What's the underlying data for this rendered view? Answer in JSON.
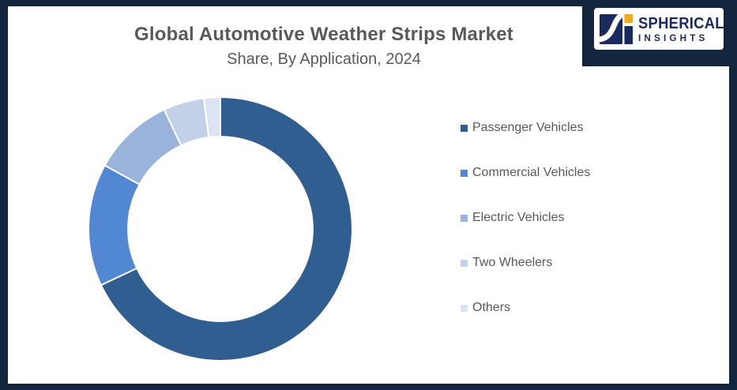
{
  "frame": {
    "border_color": "#14263E",
    "background_color": "#FFFFFF"
  },
  "brand": {
    "name_line1": "SPHERICAL",
    "name_line2": "INSIGHTS",
    "navy_color": "#1B2A5E",
    "orange_color": "#F4A81D"
  },
  "chart_data": {
    "type": "pie",
    "subtype": "donut",
    "title": "Global Automotive Weather Strips Market",
    "subtitle": "Share, By Application, 2024",
    "categories": [
      "Passenger Vehicles",
      "Commercial Vehicles",
      "Electric Vehicles",
      "Two Wheelers",
      "Others"
    ],
    "values": [
      68,
      15,
      10,
      5,
      2
    ],
    "values_are_estimated_percent": true,
    "colors": [
      "#305E90",
      "#5187D3",
      "#99B3DA",
      "#C2D1E8",
      "#DCE4F2"
    ],
    "start_angle_deg": 0,
    "direction": "clockwise",
    "inner_radius_ratio": 0.7,
    "segment_gap_color": "#FFFFFF",
    "legend_position": "right",
    "data_labels": false,
    "title_color": "#595959"
  }
}
